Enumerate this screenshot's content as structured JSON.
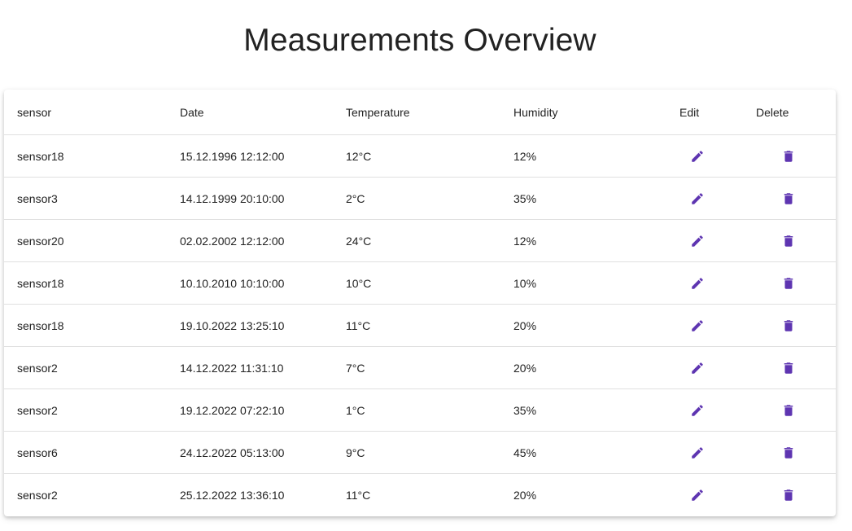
{
  "page": {
    "title": "Measurements Overview"
  },
  "theme": {
    "accent": "#5e35b1",
    "text": "#222222",
    "divider": "#e0e0e0"
  },
  "table": {
    "headers": {
      "sensor": "sensor",
      "date": "Date",
      "temperature": "Temperature",
      "humidity": "Humidity",
      "edit": "Edit",
      "delete": "Delete"
    },
    "row_icons": {
      "edit": "pencil-icon",
      "delete": "trash-icon"
    },
    "rows": [
      {
        "sensor": "sensor18",
        "date": "15.12.1996 12:12:00",
        "temperature": "12°C",
        "humidity": "12%"
      },
      {
        "sensor": "sensor3",
        "date": "14.12.1999 20:10:00",
        "temperature": "2°C",
        "humidity": "35%"
      },
      {
        "sensor": "sensor20",
        "date": "02.02.2002 12:12:00",
        "temperature": "24°C",
        "humidity": "12%"
      },
      {
        "sensor": "sensor18",
        "date": "10.10.2010 10:10:00",
        "temperature": "10°C",
        "humidity": "10%"
      },
      {
        "sensor": "sensor18",
        "date": "19.10.2022 13:25:10",
        "temperature": "11°C",
        "humidity": "20%"
      },
      {
        "sensor": "sensor2",
        "date": "14.12.2022 11:31:10",
        "temperature": "7°C",
        "humidity": "20%"
      },
      {
        "sensor": "sensor2",
        "date": "19.12.2022 07:22:10",
        "temperature": "1°C",
        "humidity": "35%"
      },
      {
        "sensor": "sensor6",
        "date": "24.12.2022 05:13:00",
        "temperature": "9°C",
        "humidity": "45%"
      },
      {
        "sensor": "sensor2",
        "date": "25.12.2022 13:36:10",
        "temperature": "11°C",
        "humidity": "20%"
      }
    ]
  }
}
